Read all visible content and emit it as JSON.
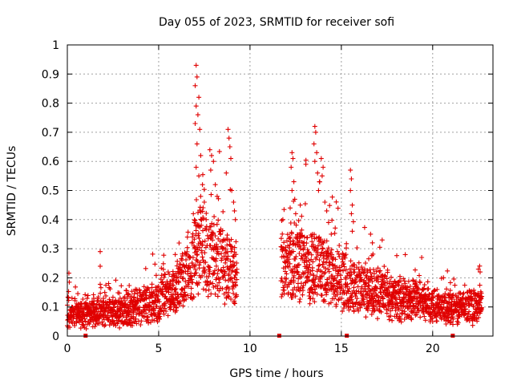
{
  "chart_data": {
    "type": "scatter",
    "title": "Day 055 of 2023, SRMTID for receiver sofi",
    "xlabel": "GPS time / hours",
    "ylabel": "SRMTID / TECUs",
    "xlim": [
      0,
      23.3
    ],
    "ylim": [
      0,
      1
    ],
    "xticks": [
      0,
      5,
      10,
      15,
      20
    ],
    "yticks": [
      0,
      0.1,
      0.2,
      0.3,
      0.4,
      0.5,
      0.6,
      0.7,
      0.8,
      0.9,
      1
    ],
    "xtick_labels": [
      "0",
      "5",
      "10",
      "15",
      "20"
    ],
    "ytick_labels": [
      "0",
      "0.1",
      "0.2",
      "0.3",
      "0.4",
      "0.5",
      "0.6",
      "0.7",
      "0.8",
      "0.9",
      "1"
    ],
    "grid": true,
    "marker": "+",
    "color": "#e00000",
    "data_gap_hours": [
      9.3,
      11.7
    ],
    "baseline_markers_x": [
      1.0,
      11.6,
      15.3,
      21.1
    ],
    "trend": [
      {
        "x": 0.0,
        "y": 0.085
      },
      {
        "x": 1.0,
        "y": 0.09
      },
      {
        "x": 2.0,
        "y": 0.085
      },
      {
        "x": 3.0,
        "y": 0.095
      },
      {
        "x": 4.0,
        "y": 0.115
      },
      {
        "x": 5.0,
        "y": 0.13
      },
      {
        "x": 6.0,
        "y": 0.17
      },
      {
        "x": 6.8,
        "y": 0.25
      },
      {
        "x": 7.3,
        "y": 0.34
      },
      {
        "x": 7.8,
        "y": 0.3
      },
      {
        "x": 8.5,
        "y": 0.27
      },
      {
        "x": 9.3,
        "y": 0.23
      },
      {
        "x": 11.7,
        "y": 0.26
      },
      {
        "x": 12.5,
        "y": 0.28
      },
      {
        "x": 13.2,
        "y": 0.26
      },
      {
        "x": 14.0,
        "y": 0.24
      },
      {
        "x": 15.0,
        "y": 0.2
      },
      {
        "x": 16.0,
        "y": 0.18
      },
      {
        "x": 17.0,
        "y": 0.16
      },
      {
        "x": 18.0,
        "y": 0.14
      },
      {
        "x": 19.0,
        "y": 0.13
      },
      {
        "x": 20.0,
        "y": 0.11
      },
      {
        "x": 21.0,
        "y": 0.1
      },
      {
        "x": 22.0,
        "y": 0.11
      },
      {
        "x": 22.7,
        "y": 0.12
      }
    ],
    "highlights": [
      {
        "x": 7.05,
        "y": 0.93
      },
      {
        "x": 7.1,
        "y": 0.89
      },
      {
        "x": 7.0,
        "y": 0.86
      },
      {
        "x": 7.2,
        "y": 0.82
      },
      {
        "x": 7.05,
        "y": 0.79
      },
      {
        "x": 7.15,
        "y": 0.76
      },
      {
        "x": 7.0,
        "y": 0.73
      },
      {
        "x": 7.25,
        "y": 0.71
      },
      {
        "x": 7.1,
        "y": 0.66
      },
      {
        "x": 7.3,
        "y": 0.62
      },
      {
        "x": 7.05,
        "y": 0.58
      },
      {
        "x": 7.2,
        "y": 0.55
      },
      {
        "x": 7.4,
        "y": 0.52
      },
      {
        "x": 7.3,
        "y": 0.48
      },
      {
        "x": 7.5,
        "y": 0.46
      },
      {
        "x": 7.8,
        "y": 0.64
      },
      {
        "x": 7.9,
        "y": 0.62
      },
      {
        "x": 8.0,
        "y": 0.6
      },
      {
        "x": 7.85,
        "y": 0.57
      },
      {
        "x": 8.1,
        "y": 0.52
      },
      {
        "x": 8.2,
        "y": 0.48
      },
      {
        "x": 8.8,
        "y": 0.71
      },
      {
        "x": 8.85,
        "y": 0.68
      },
      {
        "x": 8.9,
        "y": 0.65
      },
      {
        "x": 8.95,
        "y": 0.61
      },
      {
        "x": 8.7,
        "y": 0.56
      },
      {
        "x": 9.0,
        "y": 0.5
      },
      {
        "x": 9.1,
        "y": 0.46
      },
      {
        "x": 9.15,
        "y": 0.43
      },
      {
        "x": 9.2,
        "y": 0.4
      },
      {
        "x": 12.3,
        "y": 0.63
      },
      {
        "x": 12.35,
        "y": 0.61
      },
      {
        "x": 12.25,
        "y": 0.58
      },
      {
        "x": 12.4,
        "y": 0.53
      },
      {
        "x": 12.3,
        "y": 0.5
      },
      {
        "x": 12.45,
        "y": 0.47
      },
      {
        "x": 12.2,
        "y": 0.44
      },
      {
        "x": 12.5,
        "y": 0.42
      },
      {
        "x": 11.8,
        "y": 0.4
      },
      {
        "x": 13.55,
        "y": 0.72
      },
      {
        "x": 13.6,
        "y": 0.7
      },
      {
        "x": 13.5,
        "y": 0.66
      },
      {
        "x": 13.65,
        "y": 0.63
      },
      {
        "x": 13.55,
        "y": 0.6
      },
      {
        "x": 13.7,
        "y": 0.56
      },
      {
        "x": 13.8,
        "y": 0.53
      },
      {
        "x": 13.75,
        "y": 0.5
      },
      {
        "x": 13.9,
        "y": 0.61
      },
      {
        "x": 14.0,
        "y": 0.58
      },
      {
        "x": 13.95,
        "y": 0.55
      },
      {
        "x": 14.1,
        "y": 0.46
      },
      {
        "x": 14.2,
        "y": 0.43
      },
      {
        "x": 14.3,
        "y": 0.39
      },
      {
        "x": 14.45,
        "y": 0.35
      },
      {
        "x": 15.5,
        "y": 0.57
      },
      {
        "x": 15.55,
        "y": 0.54
      },
      {
        "x": 15.5,
        "y": 0.5
      },
      {
        "x": 15.6,
        "y": 0.45
      },
      {
        "x": 15.55,
        "y": 0.42
      },
      {
        "x": 15.6,
        "y": 0.36
      },
      {
        "x": 16.6,
        "y": 0.35
      },
      {
        "x": 16.7,
        "y": 0.32
      },
      {
        "x": 18.5,
        "y": 0.28
      },
      {
        "x": 19.4,
        "y": 0.27
      },
      {
        "x": 22.5,
        "y": 0.23
      },
      {
        "x": 22.6,
        "y": 0.22
      },
      {
        "x": 1.8,
        "y": 0.29
      },
      {
        "x": 1.8,
        "y": 0.24
      },
      {
        "x": 6.9,
        "y": 0.42
      },
      {
        "x": 6.95,
        "y": 0.39
      },
      {
        "x": 7.6,
        "y": 0.4
      },
      {
        "x": 8.4,
        "y": 0.36
      }
    ]
  }
}
